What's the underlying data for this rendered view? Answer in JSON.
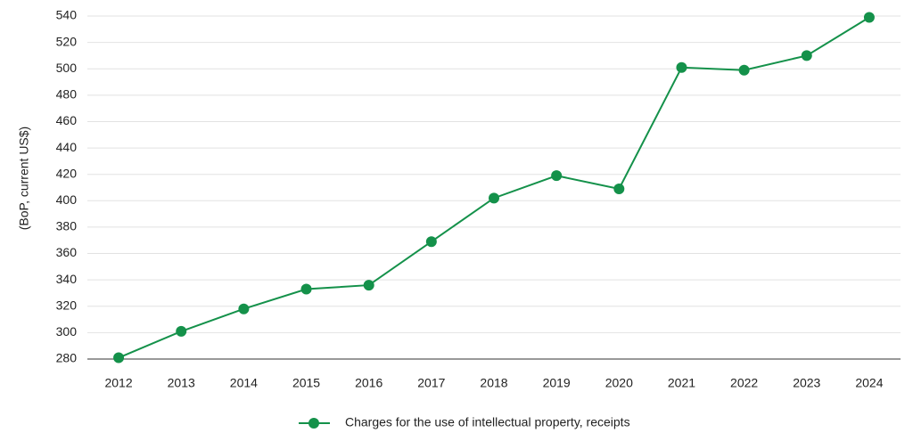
{
  "chart_data": {
    "type": "line",
    "y_label": "(BoP, current US$)",
    "categories": [
      "2012",
      "2013",
      "2014",
      "2015",
      "2016",
      "2017",
      "2018",
      "2019",
      "2020",
      "2021",
      "2022",
      "2023",
      "2024"
    ],
    "series": [
      {
        "name": "Charges for the use of intellectual property, receipts",
        "color": "#14914a",
        "values": [
          281,
          301,
          318,
          333,
          336,
          369,
          402,
          419,
          409,
          501,
          499,
          510,
          539
        ]
      }
    ],
    "ylim": [
      280,
      540
    ],
    "yticks": [
      280,
      300,
      320,
      340,
      360,
      380,
      400,
      420,
      440,
      460,
      480,
      500,
      520,
      540
    ],
    "grid": true
  }
}
